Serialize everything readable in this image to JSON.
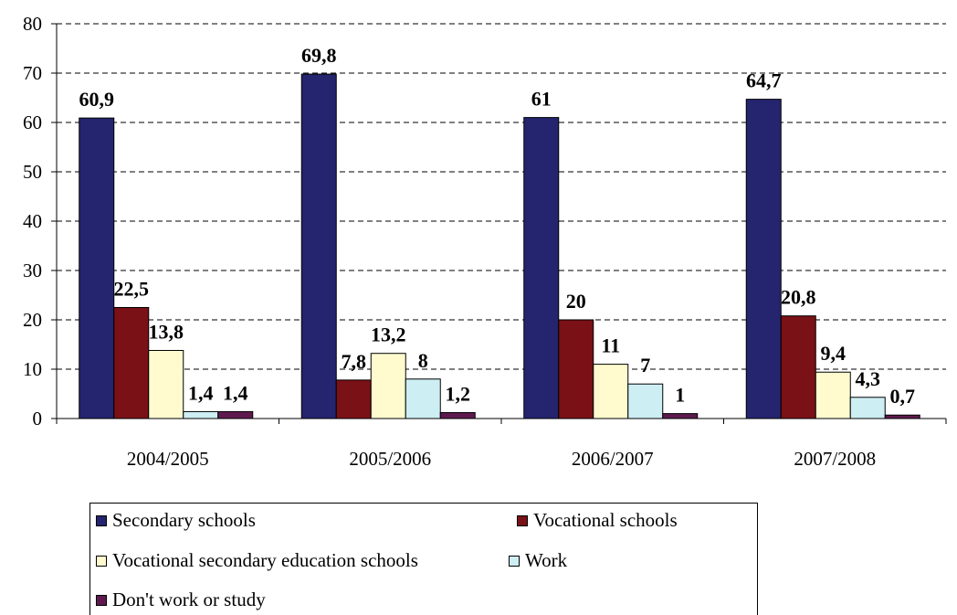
{
  "chart_data": {
    "type": "bar",
    "categories": [
      "2004/2005",
      "2005/2006",
      "2006/2007",
      "2007/2008"
    ],
    "series": [
      {
        "name": "Secondary schools",
        "color": "#24246f",
        "values": [
          60.9,
          69.8,
          61,
          64.7
        ],
        "labels": [
          "60,9",
          "69,8",
          "61",
          "64,7"
        ]
      },
      {
        "name": "Vocational schools",
        "color": "#7a1116",
        "values": [
          22.5,
          7.8,
          20,
          20.8
        ],
        "labels": [
          "22,5",
          "7,8",
          "20",
          "20,8"
        ]
      },
      {
        "name": "Vocational secondary education schools",
        "color": "#fffbcf",
        "values": [
          13.8,
          13.2,
          11,
          9.4
        ],
        "labels": [
          "13,8",
          "13,2",
          "11",
          "9,4"
        ]
      },
      {
        "name": "Work",
        "color": "#cdeef3",
        "values": [
          1.4,
          8,
          7,
          4.3
        ],
        "labels": [
          "1,4",
          "8",
          "7",
          "4,3"
        ]
      },
      {
        "name": "Don't work or study",
        "color": "#5e1a4e",
        "values": [
          1.4,
          1.2,
          1,
          0.7
        ],
        "labels": [
          "1,4",
          "1,2",
          "1",
          "0,7"
        ]
      }
    ],
    "yticks": [
      "0",
      "10",
      "20",
      "30",
      "40",
      "50",
      "60",
      "70",
      "80"
    ],
    "ylim": [
      0,
      80
    ],
    "grid": "dashed horizontal",
    "legend_position": "bottom"
  }
}
